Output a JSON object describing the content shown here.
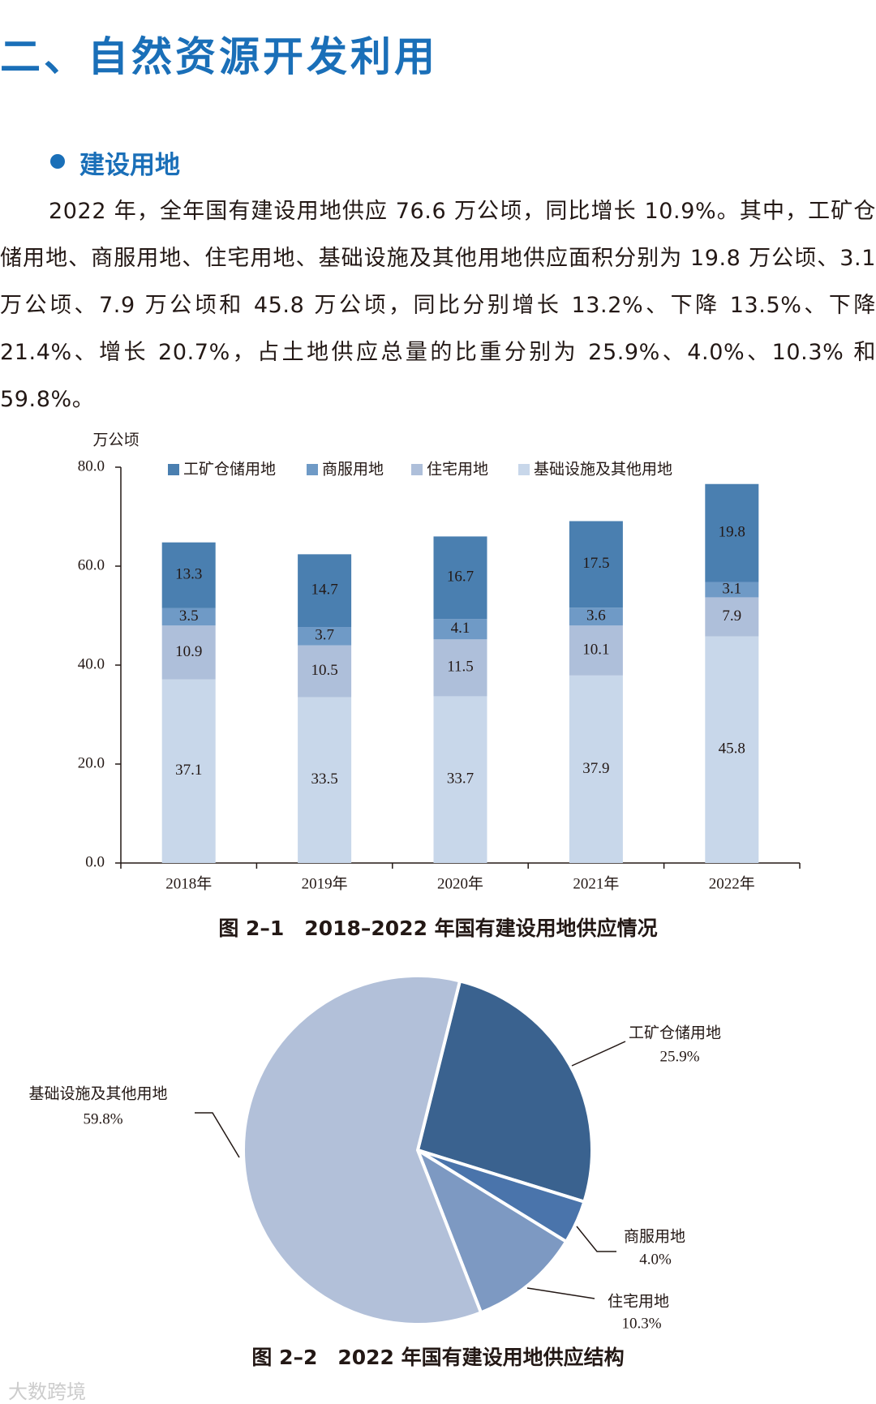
{
  "header": {
    "title": "二、自然资源开发利用"
  },
  "section": {
    "title": "建设用地",
    "paragraph": "2022 年，全年国有建设用地供应 76.6 万公顷，同比增长 10.9%。其中，工矿仓储用地、商服用地、住宅用地、基础设施及其他用地供应面积分别为 19.8 万公顷、3.1 万公顷、7.9 万公顷和 45.8 万公顷，同比分别增长 13.2%、下降 13.5%、下降 21.4%、增长 20.7%，占土地供应总量的比重分别为 25.9%、4.0%、10.3% 和 59.8%。"
  },
  "chart_data": [
    {
      "type": "stacked-bar",
      "caption": "图 2–1　2018–2022 年国有建设用地供应情况",
      "y_label": "万公顷",
      "categories": [
        "2018年",
        "2019年",
        "2020年",
        "2021年",
        "2022年"
      ],
      "series": [
        {
          "name": "工矿仓储用地",
          "color": "#4a7fb0",
          "values": [
            13.3,
            14.7,
            16.7,
            17.5,
            19.8
          ]
        },
        {
          "name": "商服用地",
          "color": "#6f9ac6",
          "values": [
            3.5,
            3.7,
            4.1,
            3.6,
            3.1
          ]
        },
        {
          "name": "住宅用地",
          "color": "#aebfda",
          "values": [
            10.9,
            10.5,
            11.5,
            10.1,
            7.9
          ]
        },
        {
          "name": "基础设施及其他用地",
          "color": "#c8d7ea",
          "values": [
            37.1,
            33.5,
            33.7,
            37.9,
            45.8
          ]
        }
      ],
      "ylim": [
        0,
        80
      ],
      "yticks": [
        {
          "value": 0,
          "label": "0.0"
        },
        {
          "value": 20,
          "label": "20.0"
        },
        {
          "value": 40,
          "label": "40.0"
        },
        {
          "value": 60,
          "label": "60.0"
        },
        {
          "value": 80,
          "label": "80.0"
        }
      ],
      "legend": "top"
    },
    {
      "type": "pie",
      "caption": "图 2–2　2022 年国有建设用地供应结构",
      "categories": [
        "工矿仓储用地",
        "商服用地",
        "住宅用地",
        "基础设施及其他用地"
      ],
      "values": [
        25.9,
        4.0,
        10.3,
        59.8
      ],
      "value_labels": [
        "25.9%",
        "4.0%",
        "10.3%",
        "59.8%"
      ],
      "colors": [
        "#3a628f",
        "#4a74ab",
        "#7d99c2",
        "#b2c0d9"
      ]
    }
  ],
  "watermark": "大数跨境"
}
